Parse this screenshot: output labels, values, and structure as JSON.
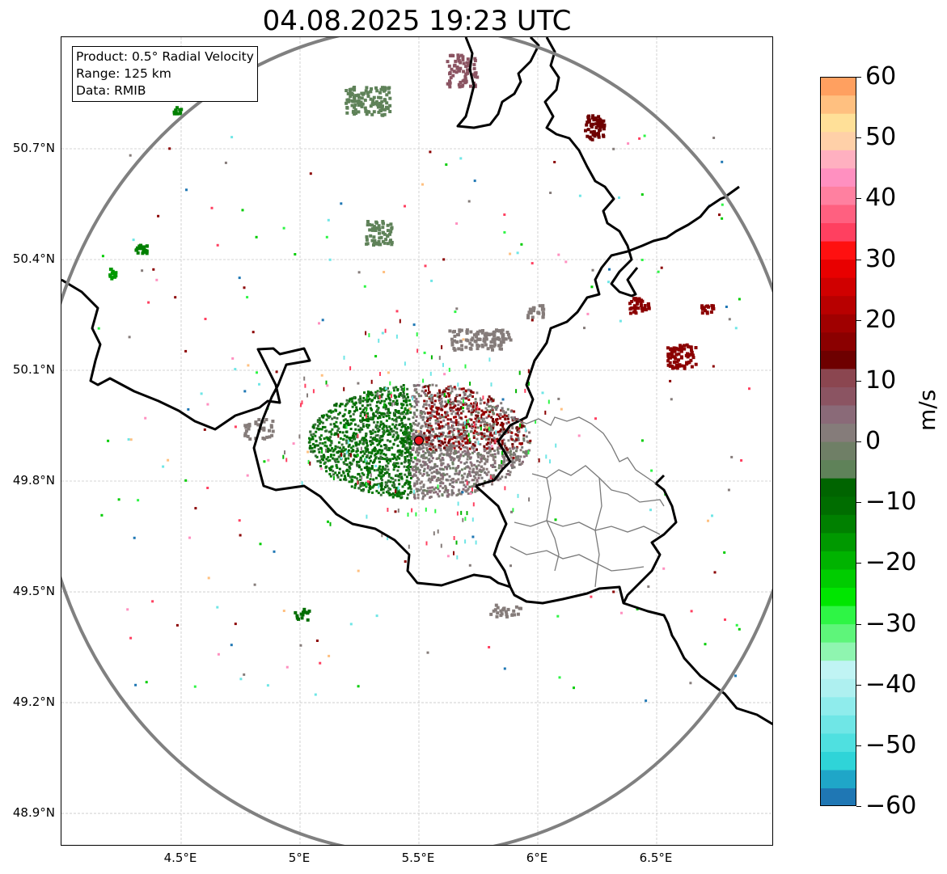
{
  "title": "04.08.2025 19:23 UTC",
  "info_box": {
    "product": "Product: 0.5° Radial Velocity",
    "range": "Range: 125 km",
    "data": "Data: RMIB"
  },
  "axes": {
    "lon_ticks": [
      {
        "label": "4.5°E",
        "value": 4.5
      },
      {
        "label": "5°E",
        "value": 5.0
      },
      {
        "label": "5.5°E",
        "value": 5.5
      },
      {
        "label": "6°E",
        "value": 6.0
      },
      {
        "label": "6.5°E",
        "value": 6.5
      }
    ],
    "lat_ticks": [
      {
        "label": "50.7°N",
        "value": 50.7
      },
      {
        "label": "50.4°N",
        "value": 50.4
      },
      {
        "label": "50.1°N",
        "value": 50.1
      },
      {
        "label": "49.8°N",
        "value": 49.8
      },
      {
        "label": "49.5°N",
        "value": 49.5
      },
      {
        "label": "49.2°N",
        "value": 49.2
      },
      {
        "label": "48.9°N",
        "value": 48.9
      }
    ],
    "lon_range": [
      4.0,
      7.0
    ],
    "lat_range": [
      48.8,
      51.0
    ]
  },
  "radar": {
    "lon": 5.5,
    "lat": 49.91,
    "range_km": 125,
    "marker_color": "#e8141b",
    "ring_color": "#808080"
  },
  "colorbar": {
    "unit": "m/s",
    "min": -60,
    "max": 60,
    "ticks": [
      {
        "label": "60",
        "value": 60
      },
      {
        "label": "50",
        "value": 50
      },
      {
        "label": "40",
        "value": 40
      },
      {
        "label": "30",
        "value": 30
      },
      {
        "label": "20",
        "value": 20
      },
      {
        "label": "10",
        "value": 10
      },
      {
        "label": "0",
        "value": 0
      },
      {
        "label": "−10",
        "value": -10
      },
      {
        "label": "−20",
        "value": -20
      },
      {
        "label": "−30",
        "value": -30
      },
      {
        "label": "−40",
        "value": -40
      },
      {
        "label": "−50",
        "value": -50
      },
      {
        "label": "−60",
        "value": -60
      }
    ],
    "colors": [
      "#1f77b4",
      "#1fa6c8",
      "#2fd4d8",
      "#4fe0e0",
      "#6fe6e6",
      "#8fecec",
      "#aef0f0",
      "#c0f4f4",
      "#8ff5b0",
      "#5ef57a",
      "#2ef545",
      "#00e600",
      "#00cc00",
      "#00b300",
      "#009900",
      "#008000",
      "#006d00",
      "#006400",
      "#5f8259",
      "#6f7f66",
      "#857c7a",
      "#8a6a78",
      "#8b5462",
      "#8b4650",
      "#6e0000",
      "#8b0000",
      "#a00000",
      "#b80000",
      "#d00000",
      "#e80000",
      "#ff1010",
      "#ff4060",
      "#ff6080",
      "#ff80a0",
      "#ff90c0",
      "#ffb0c0",
      "#ffd0a8",
      "#ffe098",
      "#ffc080",
      "#ffa060"
    ]
  }
}
